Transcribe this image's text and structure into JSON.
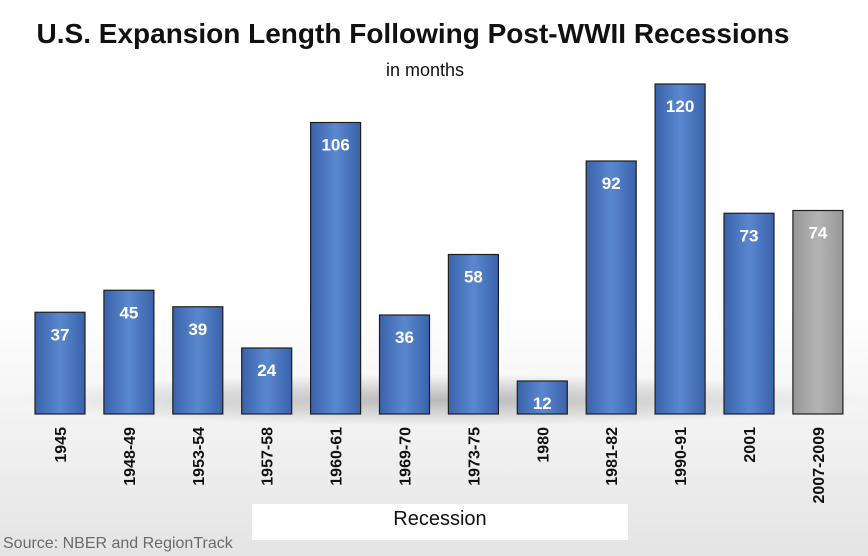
{
  "chart_data": {
    "type": "bar",
    "title": "U.S. Expansion Length Following Post-WWII Recessions",
    "subtitle": "in months",
    "xlabel": "Recession",
    "ylabel": "",
    "ylim": [
      0,
      120
    ],
    "grid": false,
    "legend": "none",
    "categories": [
      "1945",
      "1948-49",
      "1953-54",
      "1957-58",
      "1960-61",
      "1969-70",
      "1973-75",
      "1980",
      "1981-82",
      "1990-91",
      "2001",
      "2007-2009"
    ],
    "values": [
      37,
      45,
      39,
      24,
      106,
      36,
      58,
      12,
      92,
      120,
      73,
      74
    ],
    "data_labels": [
      "37",
      "45",
      "39",
      "24",
      "106",
      "36",
      "58",
      "12",
      "92",
      "120",
      "73",
      "74"
    ],
    "colors": {
      "bar": "#4472c4",
      "bar_highlight": "#a6a6a6",
      "highlight_category": "2007-2009"
    }
  },
  "source": "Source: NBER and RegionTrack"
}
